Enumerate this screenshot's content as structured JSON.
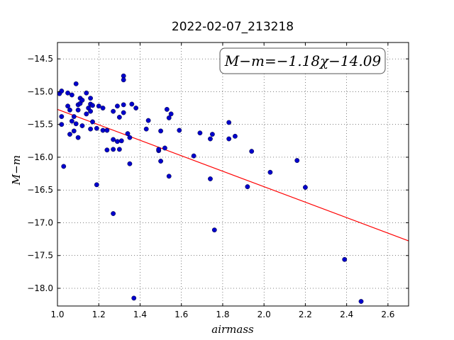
{
  "chart_data": {
    "type": "scatter",
    "title": "2022-02-07_213218",
    "xlabel": "airmass",
    "ylabel": "M−m",
    "xlim": [
      1.0,
      2.7
    ],
    "ylim": [
      -18.27,
      -14.25
    ],
    "y_inverted": true,
    "grid": true,
    "x_ticks": [
      1.0,
      1.2,
      1.4,
      1.6,
      1.8,
      2.0,
      2.2,
      2.4,
      2.6
    ],
    "x_tick_labels": [
      "1.0",
      "1.2",
      "1.4",
      "1.6",
      "1.8",
      "2.0",
      "2.2",
      "2.4",
      "2.6"
    ],
    "y_ticks": [
      -14.5,
      -15.0,
      -15.5,
      -16.0,
      -16.5,
      -17.0,
      -17.5,
      -18.0
    ],
    "y_tick_labels": [
      "−14.5",
      "−15.0",
      "−15.5",
      "−16.0",
      "−16.5",
      "−17.0",
      "−17.5",
      "−18.0"
    ],
    "annotation": "M−m=−1.18χ−14.09",
    "annotation_location": "top-right",
    "fit": {
      "slope": -1.18,
      "intercept": -14.09,
      "color": "#ff0000"
    },
    "point_color": "#0000cc",
    "points": [
      [
        1.01,
        -15.03
      ],
      [
        1.02,
        -14.99
      ],
      [
        1.02,
        -15.38
      ],
      [
        1.02,
        -15.5
      ],
      [
        1.03,
        -16.14
      ],
      [
        1.05,
        -15.02
      ],
      [
        1.05,
        -15.22
      ],
      [
        1.06,
        -15.28
      ],
      [
        1.06,
        -15.65
      ],
      [
        1.07,
        -15.05
      ],
      [
        1.07,
        -15.45
      ],
      [
        1.08,
        -15.38
      ],
      [
        1.08,
        -15.6
      ],
      [
        1.09,
        -15.49
      ],
      [
        1.09,
        -14.88
      ],
      [
        1.1,
        -15.2
      ],
      [
        1.1,
        -15.28
      ],
      [
        1.1,
        -15.7
      ],
      [
        1.11,
        -15.18
      ],
      [
        1.11,
        -15.1
      ],
      [
        1.12,
        -15.13
      ],
      [
        1.12,
        -15.52
      ],
      [
        1.14,
        -15.02
      ],
      [
        1.14,
        -15.34
      ],
      [
        1.15,
        -15.25
      ],
      [
        1.16,
        -15.3
      ],
      [
        1.16,
        -15.1
      ],
      [
        1.16,
        -15.19
      ],
      [
        1.16,
        -15.57
      ],
      [
        1.17,
        -15.46
      ],
      [
        1.17,
        -15.21
      ],
      [
        1.19,
        -15.56
      ],
      [
        1.19,
        -16.42
      ],
      [
        1.2,
        -15.22
      ],
      [
        1.22,
        -15.25
      ],
      [
        1.22,
        -15.59
      ],
      [
        1.24,
        -15.59
      ],
      [
        1.24,
        -15.89
      ],
      [
        1.27,
        -15.88
      ],
      [
        1.27,
        -15.3
      ],
      [
        1.27,
        -15.73
      ],
      [
        1.27,
        -16.86
      ],
      [
        1.29,
        -15.22
      ],
      [
        1.29,
        -15.76
      ],
      [
        1.3,
        -15.39
      ],
      [
        1.3,
        -15.88
      ],
      [
        1.31,
        -15.75
      ],
      [
        1.32,
        -15.32
      ],
      [
        1.32,
        -14.76
      ],
      [
        1.32,
        -14.82
      ],
      [
        1.32,
        -15.2
      ],
      [
        1.34,
        -15.64
      ],
      [
        1.35,
        -15.7
      ],
      [
        1.35,
        -16.1
      ],
      [
        1.36,
        -15.19
      ],
      [
        1.37,
        -18.15
      ],
      [
        1.38,
        -15.25
      ],
      [
        1.43,
        -15.57
      ],
      [
        1.44,
        -15.44
      ],
      [
        1.49,
        -15.9
      ],
      [
        1.49,
        -15.88
      ],
      [
        1.5,
        -15.6
      ],
      [
        1.5,
        -16.06
      ],
      [
        1.52,
        -15.86
      ],
      [
        1.53,
        -15.27
      ],
      [
        1.54,
        -15.4
      ],
      [
        1.54,
        -16.29
      ],
      [
        1.55,
        -15.34
      ],
      [
        1.59,
        -15.59
      ],
      [
        1.66,
        -15.98
      ],
      [
        1.69,
        -15.63
      ],
      [
        1.74,
        -15.72
      ],
      [
        1.74,
        -16.33
      ],
      [
        1.75,
        -15.65
      ],
      [
        1.76,
        -17.11
      ],
      [
        1.83,
        -15.47
      ],
      [
        1.83,
        -15.72
      ],
      [
        1.86,
        -15.68
      ],
      [
        1.92,
        -16.45
      ],
      [
        1.94,
        -15.91
      ],
      [
        2.03,
        -16.23
      ],
      [
        2.16,
        -16.05
      ],
      [
        2.2,
        -16.46
      ],
      [
        2.39,
        -17.56
      ],
      [
        2.47,
        -18.2
      ]
    ]
  }
}
